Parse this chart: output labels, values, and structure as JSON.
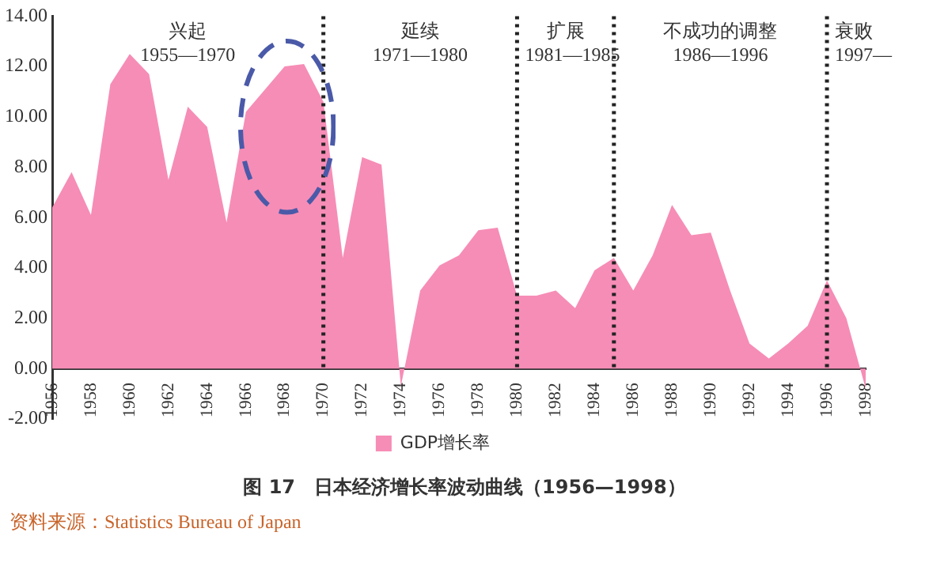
{
  "chart_data": {
    "type": "area",
    "title": "图 17　日本经济增长率波动曲线（1956—1998）",
    "x": [
      1956,
      1957,
      1958,
      1959,
      1960,
      1961,
      1962,
      1963,
      1964,
      1965,
      1966,
      1967,
      1968,
      1969,
      1970,
      1971,
      1972,
      1973,
      1974,
      1975,
      1976,
      1977,
      1978,
      1979,
      1980,
      1981,
      1982,
      1983,
      1984,
      1985,
      1986,
      1987,
      1988,
      1989,
      1990,
      1991,
      1992,
      1993,
      1994,
      1995,
      1996,
      1997,
      1998
    ],
    "series": [
      {
        "name": "GDP增长率",
        "color": "#f68db6",
        "values": [
          6.4,
          7.8,
          6.1,
          11.3,
          12.5,
          11.7,
          7.5,
          10.4,
          9.6,
          5.8,
          10.2,
          11.1,
          12.0,
          12.1,
          10.6,
          4.4,
          8.4,
          8.1,
          -0.7,
          3.1,
          4.1,
          4.5,
          5.5,
          5.6,
          2.9,
          2.9,
          3.1,
          2.4,
          3.9,
          4.4,
          3.1,
          4.5,
          6.5,
          5.3,
          5.4,
          3.1,
          1.0,
          0.4,
          1.0,
          1.7,
          3.5,
          2.0,
          -0.8
        ]
      }
    ],
    "xlim": [
      1956,
      1998
    ],
    "xticks": [
      1956,
      1958,
      1960,
      1962,
      1964,
      1966,
      1968,
      1970,
      1972,
      1974,
      1976,
      1978,
      1980,
      1982,
      1984,
      1986,
      1988,
      1990,
      1992,
      1994,
      1996,
      1998
    ],
    "ylim": [
      -2,
      14
    ],
    "yticks": [
      {
        "value": -2,
        "label": "-2.00"
      },
      {
        "value": 0,
        "label": "0.00"
      },
      {
        "value": 2,
        "label": "2.00"
      },
      {
        "value": 4,
        "label": "4.00"
      },
      {
        "value": 6,
        "label": "6.00"
      },
      {
        "value": 8,
        "label": "8.00"
      },
      {
        "value": 10,
        "label": "10.00"
      },
      {
        "value": 12,
        "label": "12.00"
      },
      {
        "value": 14,
        "label": "14.00"
      }
    ],
    "ref_lines": [
      {
        "axis": "x",
        "value": 1970,
        "color": "#222222",
        "line_style": "dotted"
      },
      {
        "axis": "x",
        "value": 1980,
        "color": "#222222",
        "line_style": "dotted"
      },
      {
        "axis": "x",
        "value": 1985,
        "color": "#222222",
        "line_style": "dotted"
      },
      {
        "axis": "x",
        "value": 1996,
        "color": "#222222",
        "line_style": "dotted"
      }
    ],
    "annotations": [
      "兴起\n1955—1970",
      "延续\n1971—1980",
      "扩展\n1981—1985",
      "不成功的调整\n1986—1996",
      "衰败\n1997—",
      "资料来源：Statistics Bureau of Japan"
    ],
    "grid": false,
    "legend": "bottom"
  }
}
